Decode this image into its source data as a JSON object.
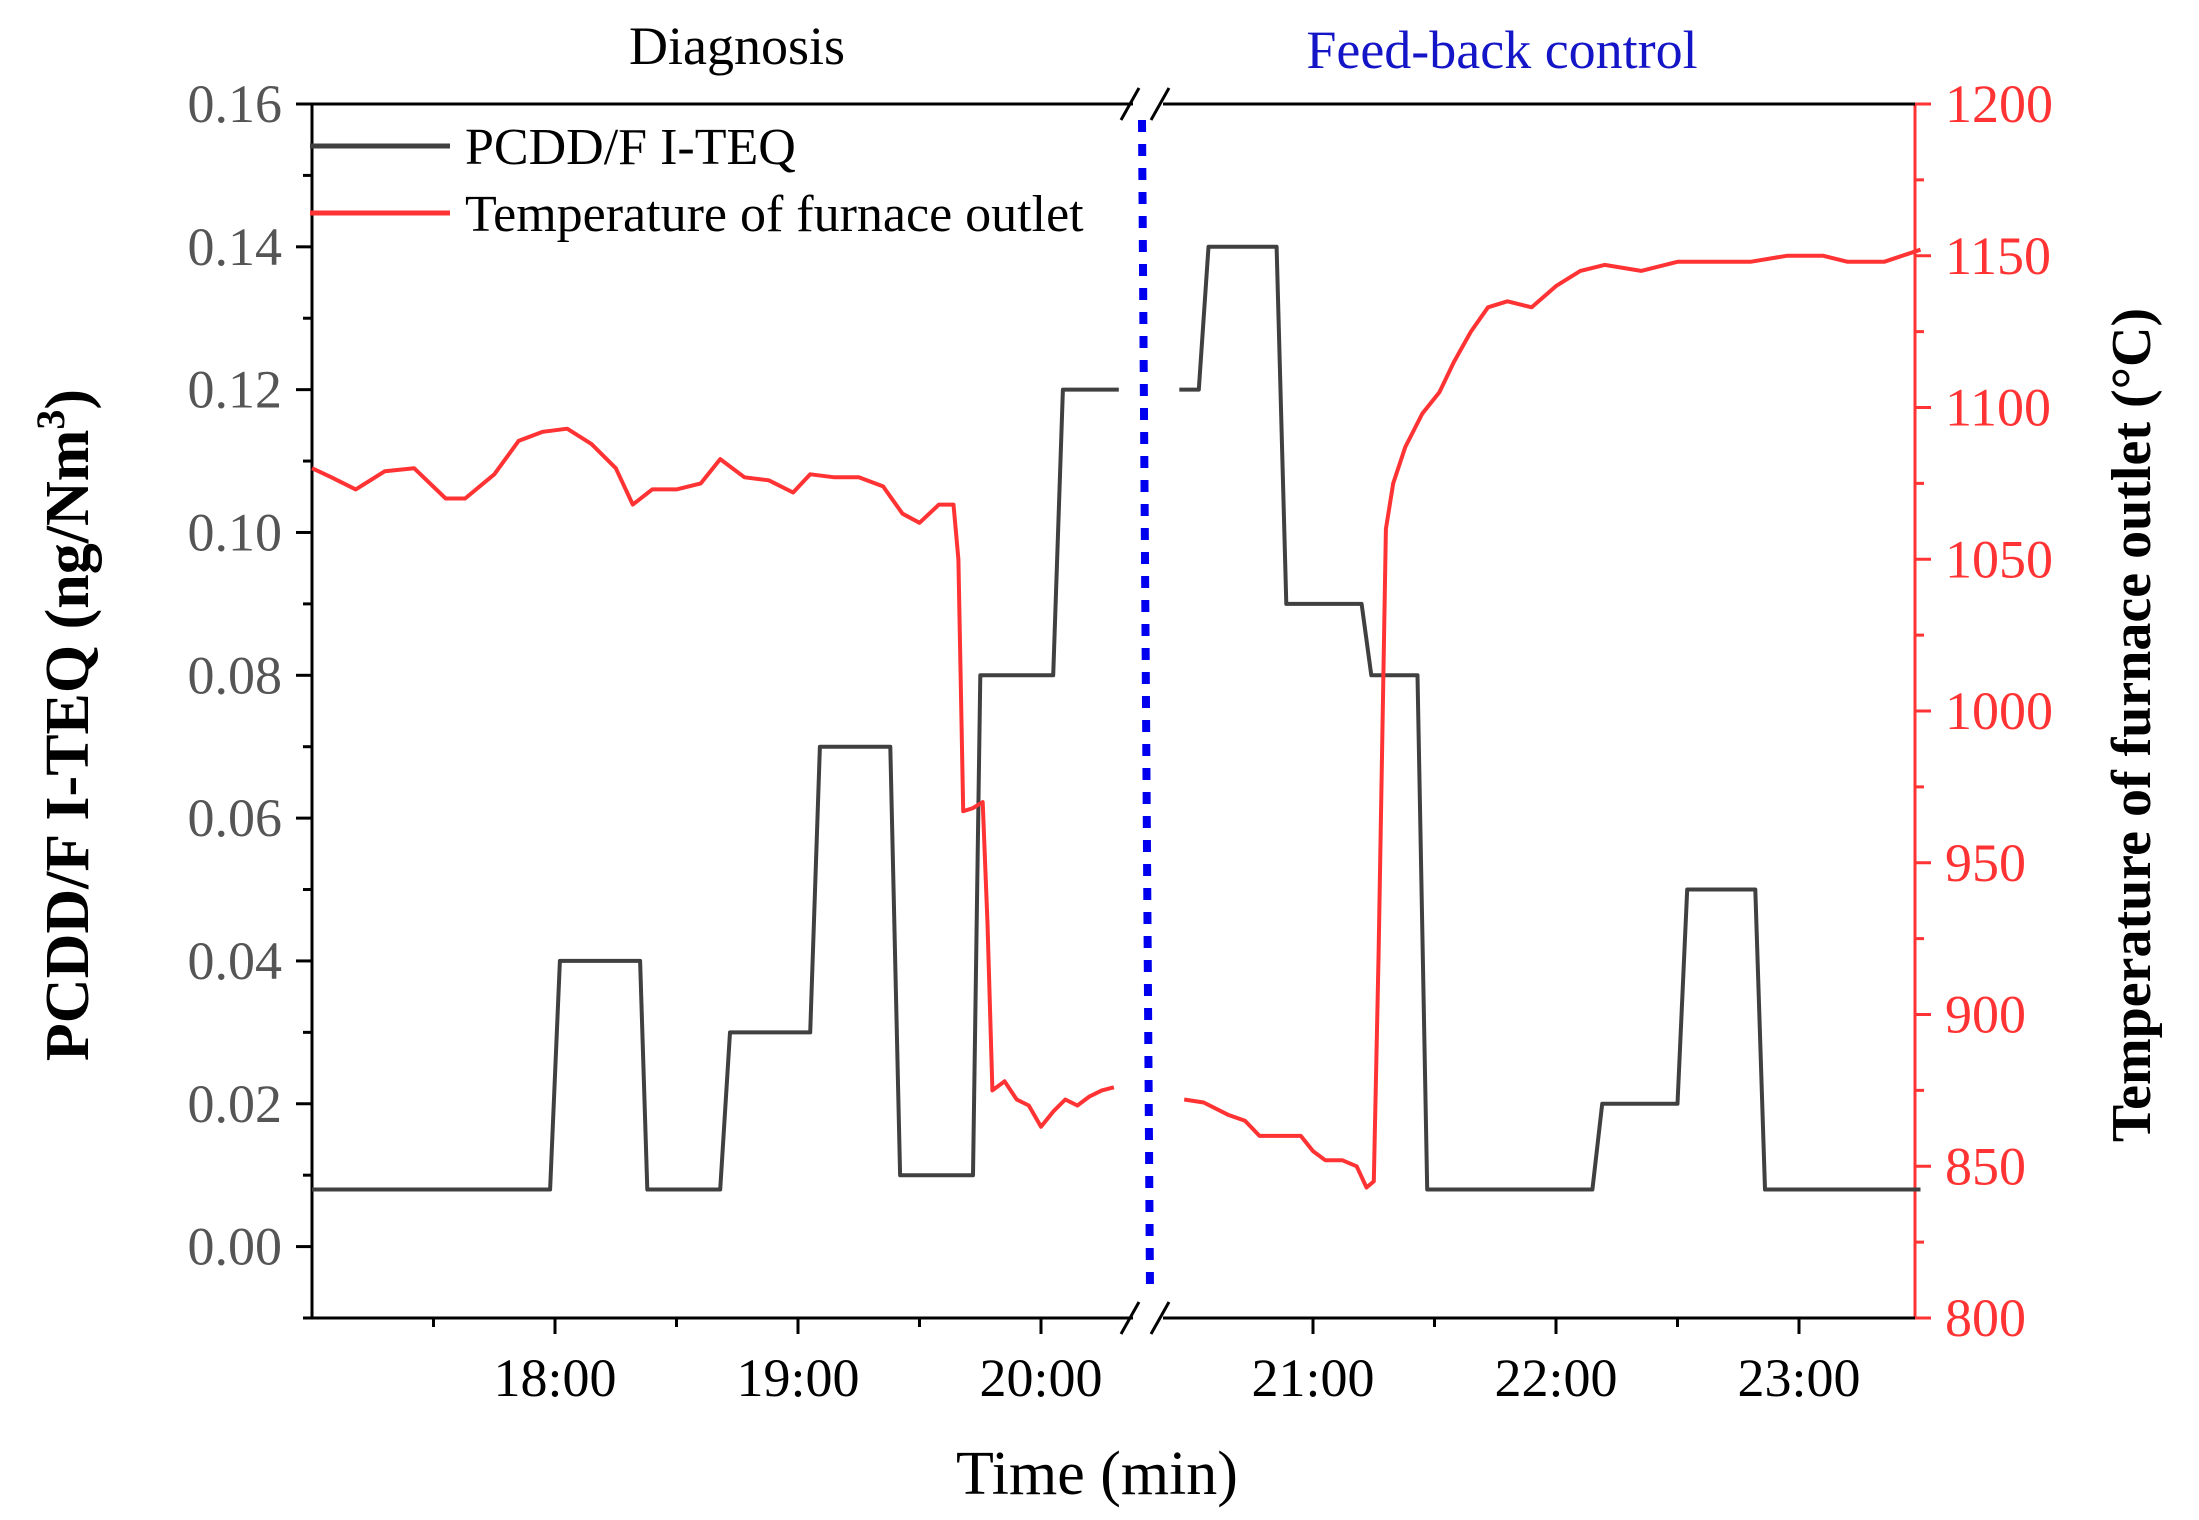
{
  "chart_data": {
    "type": "line",
    "annotations": {
      "diagnosis": "Diagnosis",
      "feedback": "Feed-back control"
    },
    "xlabel": "Time (min)",
    "ylabel_left": "PCDD/F I-TEQ (ng/Nm",
    "ylabel_left_sup": "3",
    "ylabel_left_end": ")",
    "ylabel_right": "Temperature of furnace outlet (°C)",
    "x_ticks": [
      {
        "t": 18,
        "label": "18:00"
      },
      {
        "t": 19,
        "label": "19:00"
      },
      {
        "t": 20,
        "label": "20:00"
      },
      {
        "t": 21,
        "label": "21:00"
      },
      {
        "t": 22,
        "label": "22:00"
      },
      {
        "t": 23,
        "label": "23:00"
      }
    ],
    "segments": [
      {
        "from": 17.0,
        "to": 20.35
      },
      {
        "from": 20.45,
        "to": 23.5
      }
    ],
    "feedback_line_time": 20.4,
    "ylim_left": [
      -0.01,
      0.16
    ],
    "yticks_left": [
      {
        "v": 0.0,
        "label": "0.00"
      },
      {
        "v": 0.02,
        "label": "0.02"
      },
      {
        "v": 0.04,
        "label": "0.04"
      },
      {
        "v": 0.06,
        "label": "0.06"
      },
      {
        "v": 0.08,
        "label": "0.08"
      },
      {
        "v": 0.1,
        "label": "0.10"
      },
      {
        "v": 0.12,
        "label": "0.12"
      },
      {
        "v": 0.14,
        "label": "0.14"
      },
      {
        "v": 0.16,
        "label": "0.16"
      }
    ],
    "ylim_right": [
      800,
      1200
    ],
    "yticks_right": [
      {
        "v": 800,
        "label": "800"
      },
      {
        "v": 850,
        "label": "850"
      },
      {
        "v": 900,
        "label": "900"
      },
      {
        "v": 950,
        "label": "950"
      },
      {
        "v": 1000,
        "label": "1000"
      },
      {
        "v": 1050,
        "label": "1050"
      },
      {
        "v": 1100,
        "label": "1100"
      },
      {
        "v": 1150,
        "label": "1150"
      },
      {
        "v": 1200,
        "label": "1200"
      }
    ],
    "series": [
      {
        "name": "PCDD/F I-TEQ",
        "axis": "left",
        "color": "#404040",
        "points": [
          [
            17.0,
            0.008
          ],
          [
            17.98,
            0.008
          ],
          [
            18.02,
            0.04
          ],
          [
            18.35,
            0.04
          ],
          [
            18.38,
            0.008
          ],
          [
            18.68,
            0.008
          ],
          [
            18.72,
            0.03
          ],
          [
            19.05,
            0.03
          ],
          [
            19.09,
            0.07
          ],
          [
            19.38,
            0.07
          ],
          [
            19.42,
            0.01
          ],
          [
            19.72,
            0.01
          ],
          [
            19.75,
            0.08
          ],
          [
            20.05,
            0.08
          ],
          [
            20.09,
            0.12
          ],
          [
            20.32,
            0.12
          ]
        ],
        "points_b": [
          [
            20.45,
            0.12
          ],
          [
            20.53,
            0.12
          ],
          [
            20.57,
            0.14
          ],
          [
            20.85,
            0.14
          ],
          [
            20.89,
            0.09
          ],
          [
            21.2,
            0.09
          ],
          [
            21.24,
            0.08
          ],
          [
            21.43,
            0.08
          ],
          [
            21.47,
            0.008
          ],
          [
            22.15,
            0.008
          ],
          [
            22.19,
            0.02
          ],
          [
            22.5,
            0.02
          ],
          [
            22.54,
            0.05
          ],
          [
            22.82,
            0.05
          ],
          [
            22.86,
            0.008
          ],
          [
            23.5,
            0.008
          ]
        ]
      },
      {
        "name": "Temperature of furnace outlet",
        "axis": "right",
        "color": "#ff3333",
        "points": [
          [
            17.0,
            1080
          ],
          [
            17.08,
            1077
          ],
          [
            17.18,
            1073
          ],
          [
            17.3,
            1079
          ],
          [
            17.42,
            1080
          ],
          [
            17.55,
            1070
          ],
          [
            17.63,
            1070
          ],
          [
            17.75,
            1078
          ],
          [
            17.85,
            1089
          ],
          [
            17.95,
            1092
          ],
          [
            18.05,
            1093
          ],
          [
            18.15,
            1088
          ],
          [
            18.25,
            1080
          ],
          [
            18.32,
            1068
          ],
          [
            18.4,
            1073
          ],
          [
            18.5,
            1073
          ],
          [
            18.6,
            1075
          ],
          [
            18.68,
            1083
          ],
          [
            18.78,
            1077
          ],
          [
            18.88,
            1076
          ],
          [
            18.98,
            1072
          ],
          [
            19.05,
            1078
          ],
          [
            19.15,
            1077
          ],
          [
            19.25,
            1077
          ],
          [
            19.35,
            1074
          ],
          [
            19.43,
            1065
          ],
          [
            19.5,
            1062
          ],
          [
            19.58,
            1068
          ],
          [
            19.64,
            1068
          ],
          [
            19.66,
            1050
          ],
          [
            19.68,
            967
          ],
          [
            19.72,
            968
          ],
          [
            19.76,
            970
          ],
          [
            19.78,
            930
          ],
          [
            19.8,
            875
          ],
          [
            19.85,
            878
          ],
          [
            19.9,
            872
          ],
          [
            19.95,
            870
          ],
          [
            20.0,
            863
          ],
          [
            20.05,
            868
          ],
          [
            20.1,
            872
          ],
          [
            20.15,
            870
          ],
          [
            20.2,
            873
          ],
          [
            20.25,
            875
          ],
          [
            20.3,
            876
          ]
        ],
        "points_b": [
          [
            20.47,
            872
          ],
          [
            20.55,
            871
          ],
          [
            20.65,
            867
          ],
          [
            20.72,
            865
          ],
          [
            20.78,
            860
          ],
          [
            20.85,
            860
          ],
          [
            20.95,
            860
          ],
          [
            21.0,
            855
          ],
          [
            21.05,
            852
          ],
          [
            21.12,
            852
          ],
          [
            21.18,
            850
          ],
          [
            21.22,
            843
          ],
          [
            21.25,
            845
          ],
          [
            21.27,
            920
          ],
          [
            21.3,
            1060
          ],
          [
            21.33,
            1075
          ],
          [
            21.38,
            1087
          ],
          [
            21.45,
            1098
          ],
          [
            21.52,
            1105
          ],
          [
            21.58,
            1115
          ],
          [
            21.65,
            1125
          ],
          [
            21.72,
            1133
          ],
          [
            21.8,
            1135
          ],
          [
            21.9,
            1133
          ],
          [
            22.0,
            1140
          ],
          [
            22.1,
            1145
          ],
          [
            22.2,
            1147
          ],
          [
            22.35,
            1145
          ],
          [
            22.5,
            1148
          ],
          [
            22.65,
            1148
          ],
          [
            22.8,
            1148
          ],
          [
            22.95,
            1150
          ],
          [
            23.1,
            1150
          ],
          [
            23.2,
            1148
          ],
          [
            23.35,
            1148
          ],
          [
            23.5,
            1152
          ]
        ]
      }
    ]
  }
}
